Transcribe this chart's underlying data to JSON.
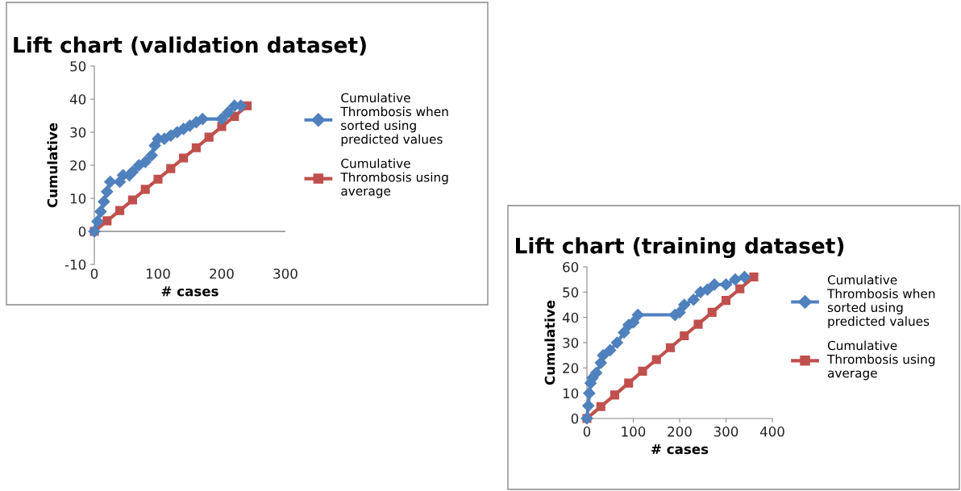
{
  "chart_data": [
    {
      "type": "line",
      "title": "Lift chart (validation dataset)",
      "xlabel": "# cases",
      "ylabel": "Cumulative",
      "legend": "right",
      "xlim": [
        0,
        300
      ],
      "ylim": [
        -10,
        50
      ],
      "xticks": [
        0,
        100,
        200,
        300
      ],
      "yticks": [
        -10,
        0,
        10,
        20,
        30,
        40,
        50
      ],
      "ref_lines": [
        {
          "axis": "y",
          "value": 0,
          "color": "#888888"
        }
      ],
      "series": [
        {
          "name": "Cumulative Thrombosis when sorted using predicted values",
          "color": "#4f81bd",
          "marker": "diamond",
          "x": [
            0,
            5,
            10,
            15,
            20,
            25,
            40,
            45,
            55,
            60,
            70,
            80,
            90,
            95,
            100,
            110,
            120,
            130,
            140,
            150,
            160,
            170,
            200,
            210,
            220,
            230
          ],
          "values": [
            0,
            3,
            6,
            9,
            12,
            15,
            15,
            17,
            17,
            18,
            20,
            21,
            23,
            26,
            28,
            28,
            29,
            30,
            31,
            32,
            33,
            34,
            34,
            36,
            38,
            38
          ]
        },
        {
          "name": "Cumulative Thrombosis using average",
          "color": "#c0504d",
          "marker": "square",
          "x": [
            0,
            20,
            40,
            60,
            80,
            100,
            120,
            140,
            160,
            180,
            200,
            220,
            240
          ],
          "values": [
            0,
            3.2,
            6.3,
            9.5,
            12.7,
            15.8,
            19,
            22.2,
            25.3,
            28.5,
            31.7,
            34.8,
            38
          ]
        }
      ]
    },
    {
      "type": "line",
      "title": "Lift chart (training dataset)",
      "xlabel": "# cases",
      "ylabel": "Cumulative",
      "legend": "right",
      "xlim": [
        0,
        400
      ],
      "ylim": [
        0,
        60
      ],
      "xticks": [
        0,
        100,
        200,
        300,
        400
      ],
      "yticks": [
        0,
        10,
        20,
        30,
        40,
        50,
        60
      ],
      "series": [
        {
          "name": "Cumulative Thrombosis when sorted using predicted values",
          "color": "#4f81bd",
          "marker": "diamond",
          "x": [
            0,
            3,
            5,
            8,
            12,
            20,
            30,
            35,
            50,
            65,
            80,
            90,
            100,
            110,
            190,
            200,
            210,
            230,
            245,
            260,
            275,
            300,
            320,
            340
          ],
          "values": [
            0,
            5,
            10,
            14,
            16,
            18,
            22,
            25,
            27,
            30,
            34,
            37,
            38,
            41,
            41,
            42,
            45,
            47,
            50,
            51,
            53,
            53,
            55,
            56
          ]
        },
        {
          "name": "Cumulative Thrombosis using average",
          "color": "#c0504d",
          "marker": "square",
          "x": [
            0,
            30,
            60,
            90,
            120,
            150,
            180,
            210,
            240,
            270,
            300,
            330,
            360
          ],
          "values": [
            0,
            4.7,
            9.3,
            14,
            18.7,
            23.3,
            28,
            32.7,
            37.3,
            42,
            46.7,
            51.3,
            56
          ]
        }
      ]
    }
  ]
}
